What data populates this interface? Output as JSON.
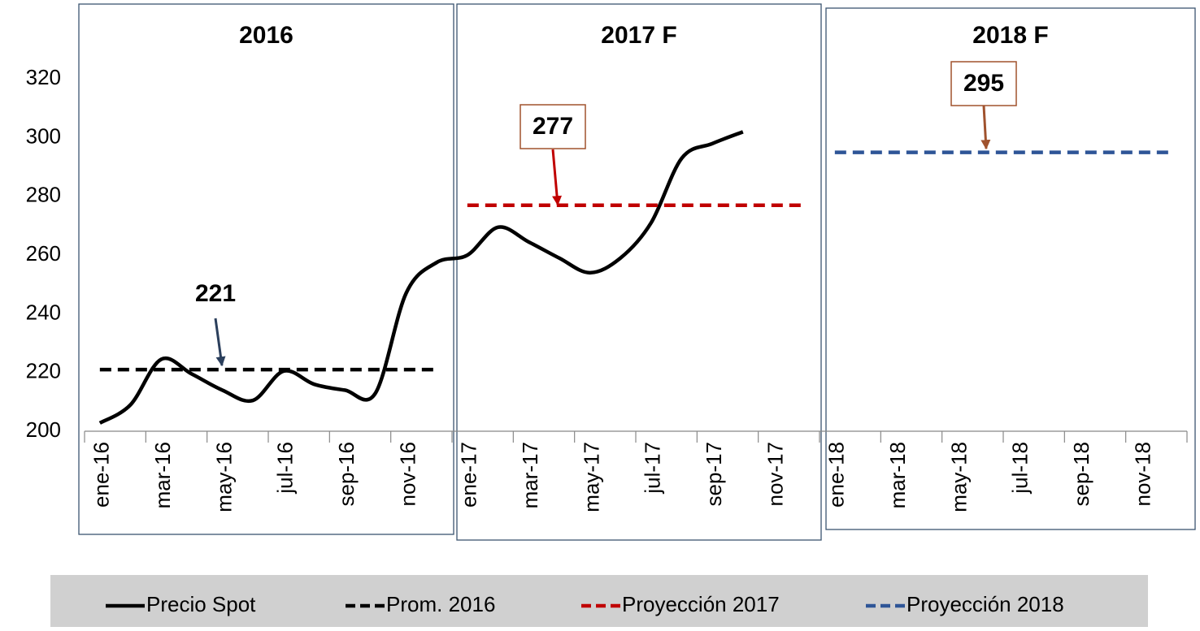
{
  "chart_data": {
    "type": "line",
    "categories": [
      "ene-16",
      null,
      "mar-16",
      null,
      "may-16",
      null,
      "jul-16",
      null,
      "sep-16",
      null,
      "nov-16",
      null,
      "ene-17",
      null,
      "mar-17",
      null,
      "may-17",
      null,
      "jul-17",
      null,
      "sep-17",
      null,
      "nov-17",
      null,
      "ene-18",
      null,
      "mar-18",
      null,
      "may-18",
      null,
      "jul-18",
      null,
      "sep-18",
      null,
      "nov-18",
      null
    ],
    "series": [
      {
        "name": "Precio Spot",
        "color": "#000000",
        "dashed": false,
        "values": [
          202.8,
          209,
          224.5,
          219.5,
          214,
          210.5,
          220.5,
          216,
          214,
          213,
          247,
          257.5,
          260,
          269.5,
          264.5,
          259,
          254,
          259,
          271,
          293,
          298,
          302,
          null,
          null,
          null,
          null,
          null,
          null,
          null,
          null,
          null,
          null,
          null,
          null,
          null,
          null
        ]
      },
      {
        "name": "Prom. 2016",
        "color": "#000000",
        "dashed": true,
        "values": [
          221,
          221,
          221,
          221,
          221,
          221,
          221,
          221,
          221,
          221,
          221,
          221,
          null,
          null,
          null,
          null,
          null,
          null,
          null,
          null,
          null,
          null,
          null,
          null,
          null,
          null,
          null,
          null,
          null,
          null,
          null,
          null,
          null,
          null,
          null,
          null
        ]
      },
      {
        "name": "Proyección 2017",
        "color": "#c00000",
        "dashed": true,
        "values": [
          null,
          null,
          null,
          null,
          null,
          null,
          null,
          null,
          null,
          null,
          null,
          null,
          277,
          277,
          277,
          277,
          277,
          277,
          277,
          277,
          277,
          277,
          277,
          277,
          null,
          null,
          null,
          null,
          null,
          null,
          null,
          null,
          null,
          null,
          null,
          null
        ]
      },
      {
        "name": "Proyección 2018",
        "color": "#2e5597",
        "dashed": true,
        "values": [
          null,
          null,
          null,
          null,
          null,
          null,
          null,
          null,
          null,
          null,
          null,
          null,
          null,
          null,
          null,
          null,
          null,
          null,
          null,
          null,
          null,
          null,
          null,
          null,
          295,
          295,
          295,
          295,
          295,
          295,
          295,
          295,
          295,
          295,
          295,
          295
        ]
      }
    ],
    "ylim": [
      200,
      340
    ],
    "yticks": [
      200,
      220,
      240,
      260,
      280,
      300,
      320
    ],
    "panels": [
      {
        "title": "2016"
      },
      {
        "title": "2017 F"
      },
      {
        "title": "2018 F"
      }
    ],
    "annotations": [
      {
        "text": "221",
        "color": "#2b3f5c",
        "boxed": false
      },
      {
        "text": "277",
        "color": "#c00000",
        "boxed": true
      },
      {
        "text": "295",
        "color": "#a0522d",
        "boxed": true
      }
    ],
    "legend": "bottom"
  }
}
